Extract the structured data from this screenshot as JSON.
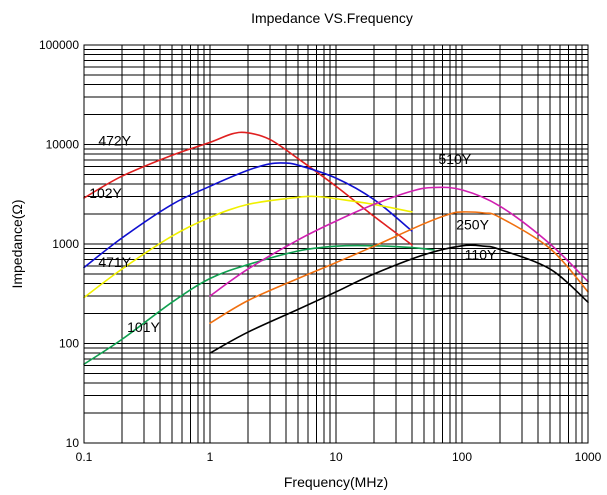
{
  "chart_data": {
    "type": "line",
    "title": "Impedance VS.Frequency",
    "xlabel": "Frequency(MHz)",
    "ylabel": "Impedance(Ω)",
    "xscale": "log",
    "yscale": "log",
    "xlim": [
      0.1,
      1000
    ],
    "ylim": [
      10,
      100000
    ],
    "grid": true,
    "legend": "inline",
    "x_ticks": [
      {
        "value": 0.1,
        "label": "0.1"
      },
      {
        "value": 1,
        "label": "1"
      },
      {
        "value": 10,
        "label": "10"
      },
      {
        "value": 100,
        "label": "100"
      },
      {
        "value": 1000,
        "label": "1000"
      }
    ],
    "y_ticks": [
      {
        "value": 10,
        "label": "10"
      },
      {
        "value": 100,
        "label": "100"
      },
      {
        "value": 1000,
        "label": "1000"
      },
      {
        "value": 10000,
        "label": "10000"
      },
      {
        "value": 100000,
        "label": "100000"
      }
    ],
    "series": [
      {
        "name": "472Y",
        "color": "#e02020",
        "label_at": [
          0.13,
          9800
        ],
        "points": [
          [
            0.1,
            2900
          ],
          [
            0.2,
            4800
          ],
          [
            0.5,
            7800
          ],
          [
            1,
            10500
          ],
          [
            1.5,
            12800
          ],
          [
            2,
            13100
          ],
          [
            3,
            11200
          ],
          [
            5,
            7200
          ],
          [
            10,
            3800
          ],
          [
            20,
            1900
          ],
          [
            40,
            980
          ]
        ]
      },
      {
        "name": "102Y",
        "color": "#1010d0",
        "label_at": [
          0.11,
          2900
        ],
        "points": [
          [
            0.1,
            580
          ],
          [
            0.2,
            1150
          ],
          [
            0.5,
            2500
          ],
          [
            1,
            3800
          ],
          [
            2,
            5500
          ],
          [
            3,
            6400
          ],
          [
            4,
            6500
          ],
          [
            5,
            6200
          ],
          [
            10,
            4600
          ],
          [
            20,
            2800
          ],
          [
            40,
            1350
          ]
        ]
      },
      {
        "name": "471Y",
        "color": "#f0f000",
        "label_at": [
          0.13,
          590
        ],
        "points": [
          [
            0.1,
            290
          ],
          [
            0.2,
            560
          ],
          [
            0.5,
            1200
          ],
          [
            1,
            1850
          ],
          [
            2,
            2500
          ],
          [
            5,
            2950
          ],
          [
            7,
            3000
          ],
          [
            10,
            2850
          ],
          [
            20,
            2500
          ],
          [
            40,
            2100
          ]
        ]
      },
      {
        "name": "101Y",
        "color": "#10a050",
        "label_at": [
          0.22,
          130
        ],
        "points": [
          [
            0.1,
            62
          ],
          [
            0.2,
            110
          ],
          [
            0.5,
            260
          ],
          [
            1,
            450
          ],
          [
            2,
            620
          ],
          [
            5,
            850
          ],
          [
            10,
            950
          ],
          [
            20,
            960
          ],
          [
            40,
            920
          ],
          [
            60,
            870
          ]
        ]
      },
      {
        "name": "510Y",
        "color": "#d020b0",
        "label_at": [
          65,
          6400
        ],
        "points": [
          [
            1,
            300
          ],
          [
            2,
            560
          ],
          [
            5,
            1100
          ],
          [
            10,
            1700
          ],
          [
            20,
            2500
          ],
          [
            40,
            3400
          ],
          [
            60,
            3700
          ],
          [
            100,
            3500
          ],
          [
            200,
            2400
          ],
          [
            500,
            1000
          ],
          [
            1000,
            420
          ]
        ]
      },
      {
        "name": "250Y",
        "color": "#f07010",
        "label_at": [
          90,
          1400
        ],
        "points": [
          [
            1,
            160
          ],
          [
            2,
            270
          ],
          [
            5,
            450
          ],
          [
            10,
            650
          ],
          [
            20,
            950
          ],
          [
            50,
            1600
          ],
          [
            80,
            2000
          ],
          [
            100,
            2100
          ],
          [
            150,
            2050
          ],
          [
            200,
            1850
          ],
          [
            500,
            900
          ],
          [
            1000,
            330
          ]
        ]
      },
      {
        "name": "110Y",
        "color": "#000000",
        "label_at": [
          105,
          700
        ],
        "points": [
          [
            1,
            80
          ],
          [
            2,
            130
          ],
          [
            5,
            220
          ],
          [
            10,
            330
          ],
          [
            20,
            500
          ],
          [
            50,
            780
          ],
          [
            100,
            960
          ],
          [
            150,
            950
          ],
          [
            200,
            880
          ],
          [
            500,
            560
          ],
          [
            1000,
            260
          ]
        ]
      }
    ]
  }
}
